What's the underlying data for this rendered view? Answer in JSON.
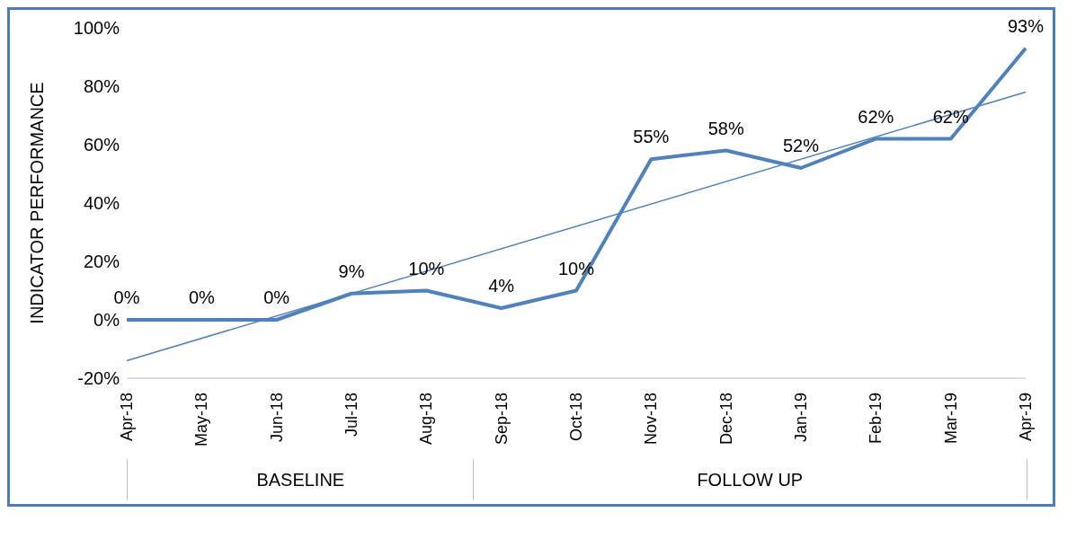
{
  "chart_data": {
    "type": "line",
    "ylabel": "INDICATOR PERFORMANCE",
    "categories": [
      "Apr-18",
      "May-18",
      "Jun-18",
      "Jul-18",
      "Aug-18",
      "Sep-18",
      "Oct-18",
      "Nov-18",
      "Dec-18",
      "Jan-19",
      "Feb-19",
      "Mar-19",
      "Apr-19"
    ],
    "series": [
      {
        "color": "#4f81bd",
        "values": [
          0,
          0,
          0,
          9,
          10,
          4,
          10,
          55,
          58,
          52,
          62,
          62,
          93
        ],
        "value_labels": [
          "0%",
          "0%",
          "0%",
          "9%",
          "10%",
          "4%",
          "10%",
          "55%",
          "58%",
          "52%",
          "62%",
          "62%",
          "93%"
        ]
      },
      {
        "color": "#4f81bd",
        "x": [
          "Apr-18",
          "Apr-19"
        ],
        "values": [
          -14,
          78
        ]
      }
    ],
    "ylim": [
      -20,
      100
    ],
    "yticks": [
      {
        "value": -20,
        "label": "-20%"
      },
      {
        "value": 0,
        "label": "0%"
      },
      {
        "value": 20,
        "label": "20%"
      },
      {
        "value": 40,
        "label": "40%"
      },
      {
        "value": 60,
        "label": "60%"
      },
      {
        "value": 80,
        "label": "80%"
      },
      {
        "value": 100,
        "label": "100%"
      }
    ],
    "annotations": [
      "BASELINE",
      "FOLLOW UP"
    ],
    "grid": false,
    "legend": false,
    "marker": "none"
  }
}
